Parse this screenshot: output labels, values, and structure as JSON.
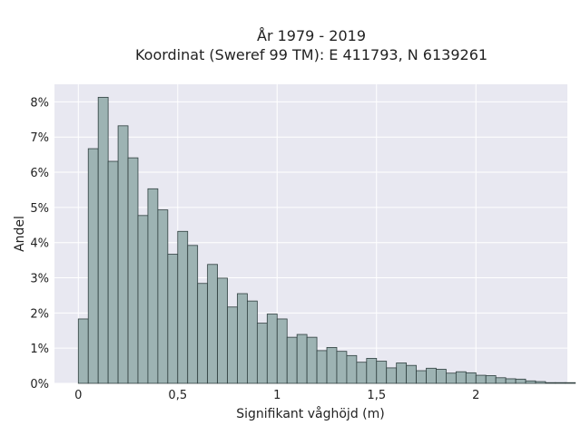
{
  "chart_data": {
    "type": "bar",
    "title": "År 1979 - 2019",
    "subtitle": "Koordinat (Sweref 99 TM): E 411793, N 6139261",
    "xlabel": "Signifikant våghöjd (m)",
    "ylabel": "Andel",
    "xlim": [
      -0.12,
      2.46
    ],
    "ylim": [
      0,
      8.5
    ],
    "grid": true,
    "x_ticks": [
      0,
      0.5,
      1,
      1.5,
      2
    ],
    "x_tick_labels": [
      "0",
      "0,5",
      "1",
      "1,5",
      "2"
    ],
    "y_ticks": [
      0,
      1,
      2,
      3,
      4,
      5,
      6,
      7,
      8
    ],
    "y_tick_labels": [
      "0%",
      "1%",
      "2%",
      "3%",
      "4%",
      "5%",
      "6%",
      "7%",
      "8%"
    ],
    "bin_width": 0.05,
    "bin_start": 0.0,
    "values": [
      1.83,
      6.67,
      8.13,
      6.31,
      7.32,
      6.41,
      4.77,
      5.53,
      4.93,
      3.67,
      4.32,
      3.92,
      2.84,
      3.38,
      2.99,
      2.17,
      2.55,
      2.34,
      1.71,
      1.97,
      1.83,
      1.31,
      1.39,
      1.31,
      0.93,
      1.02,
      0.91,
      0.79,
      0.6,
      0.71,
      0.63,
      0.44,
      0.58,
      0.51,
      0.36,
      0.43,
      0.4,
      0.29,
      0.33,
      0.3,
      0.23,
      0.22,
      0.16,
      0.13,
      0.12,
      0.07,
      0.05,
      0.02,
      0.02,
      0.02
    ],
    "colors": {
      "bar_fill": "#9db3b3",
      "bar_stroke": "#2f3f3f",
      "plot_bg": "#e8e8f1",
      "grid": "#ffffff"
    }
  }
}
